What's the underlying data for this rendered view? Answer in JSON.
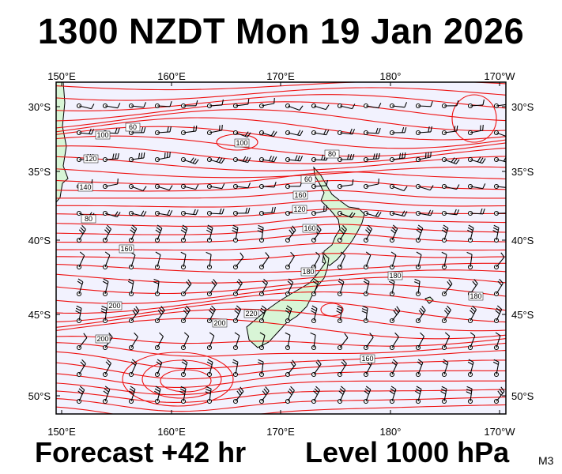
{
  "title": "1300 NZDT Mon 19 Jan 2026",
  "forecast_label": "Forecast +42 hr",
  "level_label": "Level 1000 hPa",
  "model_code": "M3",
  "colors": {
    "ocean": "#f2f2fe",
    "land": "#d8f5d6",
    "contour": "#ee1111",
    "frame": "#000000"
  },
  "axes": {
    "x_ticks": [
      "150°E",
      "160°E",
      "170°E",
      "180°",
      "170°W"
    ],
    "y_ticks": [
      "30°S",
      "35°S",
      "40°S",
      "45°S",
      "50°S"
    ]
  },
  "contour_labels": [
    "100",
    "60",
    "120",
    "140",
    "100",
    "80",
    "60",
    "160",
    "120",
    "80",
    "160",
    "160",
    "180",
    "180",
    "200",
    "200",
    "220",
    "180",
    "200",
    "160"
  ],
  "wind_barbs": "present"
}
